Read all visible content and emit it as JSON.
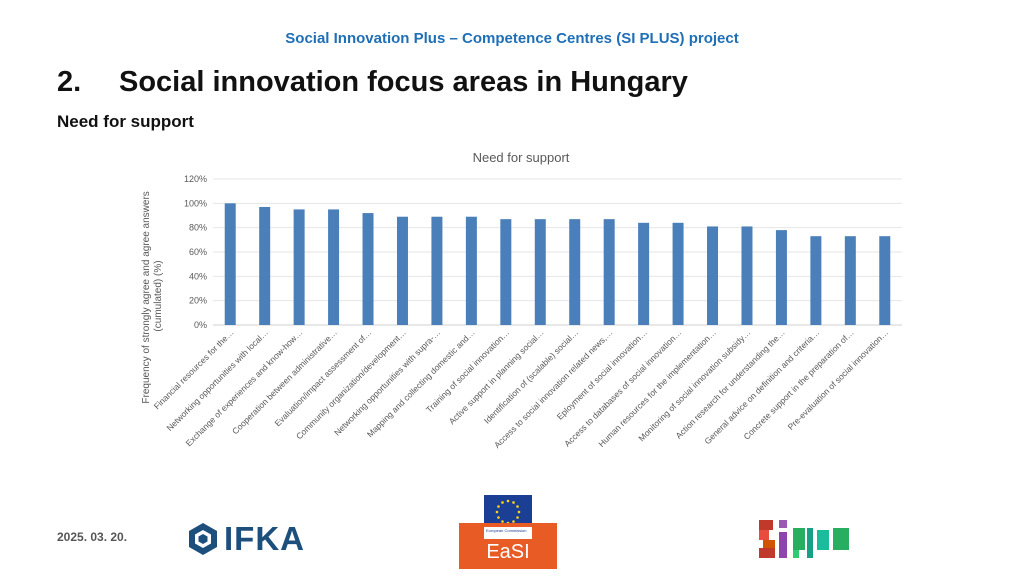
{
  "header": {
    "project_title": "Social Innovation Plus – Competence Centres (SI PLUS) project",
    "section_number": "2.",
    "section_title": "Social innovation focus areas in Hungary",
    "subtitle": "Need for support"
  },
  "footer": {
    "date": "2025. 03. 20.",
    "ifka_logo_text": "IFKA",
    "easi_text": "EaSI",
    "easi_commission_text": "European Commission",
    "siplus_logo_text": "SiPLUS"
  },
  "colors": {
    "title_blue": "#1f6fb6",
    "bar": "#4a7fb9",
    "easi_orange": "#e85b25",
    "ifka_navy": "#1d4f7c"
  },
  "chart_data": {
    "type": "bar",
    "title": "Need for support",
    "xlabel": "",
    "ylabel": "Frequency of strongly agree and agree answers (cumulated) (%)",
    "ylabel_lines": [
      "Frequency of strongly agree and agree answers",
      "(cumulated) (%)"
    ],
    "ylim": [
      0,
      120
    ],
    "yticks": [
      0,
      20,
      40,
      60,
      80,
      100,
      120
    ],
    "ytick_labels": [
      "0%",
      "20%",
      "40%",
      "60%",
      "80%",
      "100%",
      "120%"
    ],
    "grid": true,
    "categories": [
      "Financial resources for the…",
      "Networking opportunities with local…",
      "Exchange of experiences and know-how…",
      "Cooperation between administrative…",
      "Evaluation/impact assessment of…",
      "Community organization/development…",
      "Networking opportunities with supra-…",
      "Mapping and collecting domestic and…",
      "Training of social innovation…",
      "Active support in planning social…",
      "Identification of (scalable) social…",
      "Access to social innovation related news,…",
      "Eployment of social innovation…",
      "Access to databases of social innovation…",
      "Human resources for the implementation…",
      "Monitoring of social innovation subsidy…",
      "Action research for understanding the…",
      "General advice on definition and criteria…",
      "Concrete support in the preparation of…",
      "Pre-evaluation of social innovation…"
    ],
    "values": [
      100,
      97,
      95,
      95,
      92,
      89,
      89,
      89,
      87,
      87,
      87,
      87,
      84,
      84,
      81,
      81,
      78,
      73,
      73,
      73
    ]
  }
}
